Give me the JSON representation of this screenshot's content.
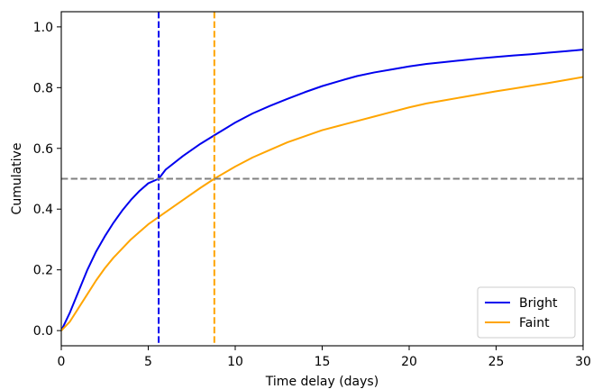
{
  "chart_data": {
    "type": "line",
    "title": "",
    "xlabel": "Time delay (days)",
    "ylabel": "Cumulative",
    "xlim": [
      0,
      30
    ],
    "ylim": [
      -0.05,
      1.05
    ],
    "xticks": [
      0,
      5,
      10,
      15,
      20,
      25,
      30
    ],
    "xtick_labels": [
      "0",
      "5",
      "10",
      "15",
      "20",
      "25",
      "30"
    ],
    "yticks": [
      0.0,
      0.2,
      0.4,
      0.6,
      0.8,
      1.0
    ],
    "ytick_labels": [
      "0.0",
      "0.2",
      "0.4",
      "0.6",
      "0.8",
      "1.0"
    ],
    "grid": false,
    "legend_position": "lower-right",
    "series": [
      {
        "name": "Bright",
        "color": "#0000ee",
        "x": [
          0,
          0.5,
          1,
          1.5,
          2,
          2.5,
          3,
          3.5,
          4,
          4.5,
          5,
          5.6,
          6,
          7,
          8,
          9,
          10,
          11,
          12,
          13,
          14,
          15,
          16,
          17,
          18,
          19,
          20,
          21,
          22,
          23,
          24,
          25,
          26,
          27,
          28,
          29,
          30
        ],
        "y": [
          0,
          0.06,
          0.13,
          0.2,
          0.26,
          0.31,
          0.355,
          0.395,
          0.43,
          0.46,
          0.485,
          0.5,
          0.53,
          0.575,
          0.615,
          0.65,
          0.685,
          0.715,
          0.74,
          0.763,
          0.785,
          0.805,
          0.822,
          0.838,
          0.85,
          0.86,
          0.87,
          0.878,
          0.884,
          0.89,
          0.896,
          0.901,
          0.906,
          0.91,
          0.915,
          0.92,
          0.925
        ]
      },
      {
        "name": "Faint",
        "color": "#ffa500",
        "x": [
          0,
          0.5,
          1,
          1.5,
          2,
          2.5,
          3,
          3.5,
          4,
          4.5,
          5,
          5.5,
          6,
          7,
          8,
          8.8,
          10,
          11,
          12,
          13,
          14,
          15,
          16,
          17,
          18,
          19,
          20,
          21,
          22,
          23,
          24,
          25,
          26,
          27,
          28,
          29,
          30
        ],
        "y": [
          0,
          0.03,
          0.075,
          0.12,
          0.165,
          0.205,
          0.24,
          0.27,
          0.3,
          0.325,
          0.35,
          0.37,
          0.39,
          0.43,
          0.47,
          0.5,
          0.54,
          0.57,
          0.595,
          0.62,
          0.64,
          0.66,
          0.675,
          0.69,
          0.705,
          0.72,
          0.735,
          0.748,
          0.758,
          0.768,
          0.778,
          0.788,
          0.797,
          0.806,
          0.815,
          0.825,
          0.835
        ]
      }
    ],
    "reference_lines": [
      {
        "orientation": "vertical",
        "value": 5.6,
        "color": "#0000ee",
        "style": "dashed"
      },
      {
        "orientation": "vertical",
        "value": 8.8,
        "color": "#ffa500",
        "style": "dashed"
      },
      {
        "orientation": "horizontal",
        "value": 0.5,
        "color": "#808080",
        "style": "dashed"
      }
    ]
  }
}
